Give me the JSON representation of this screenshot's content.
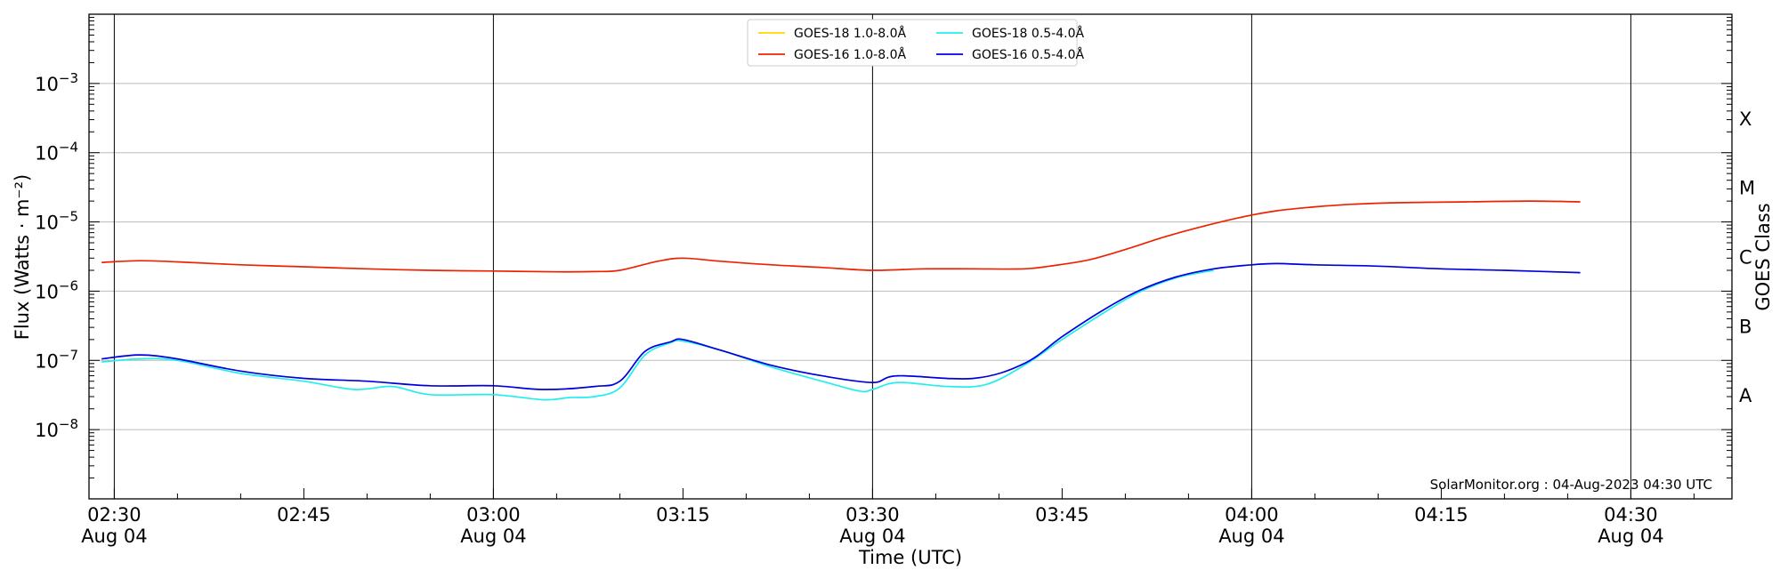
{
  "chart_data": {
    "type": "line",
    "xlabel": "Time (UTC)",
    "ylabel": "Flux (Watts · m⁻²)",
    "y2label": "GOES Class",
    "yscale": "log",
    "ylim": [
      1e-09,
      0.01
    ],
    "xlim": [
      "2023-08-04 02:28",
      "2023-08-04 04:38"
    ],
    "grid": "horizontal-major",
    "legend_position": "top-center",
    "credit": "SolarMonitor.org : 04-Aug-2023 04:30 UTC",
    "x_ticks": [
      {
        "time": "02:30",
        "date": "Aug 04",
        "minute": 150
      },
      {
        "time": "02:45",
        "date": "",
        "minute": 165
      },
      {
        "time": "03:00",
        "date": "Aug 04",
        "minute": 180
      },
      {
        "time": "03:15",
        "date": "",
        "minute": 195
      },
      {
        "time": "03:30",
        "date": "Aug 04",
        "minute": 210
      },
      {
        "time": "03:45",
        "date": "",
        "minute": 225
      },
      {
        "time": "04:00",
        "date": "Aug 04",
        "minute": 240
      },
      {
        "time": "04:15",
        "date": "",
        "minute": 255
      },
      {
        "time": "04:30",
        "date": "Aug 04",
        "minute": 270
      }
    ],
    "y_ticks": [
      {
        "base": "10",
        "exp": "−8",
        "value": 1e-08
      },
      {
        "base": "10",
        "exp": "−7",
        "value": 1e-07
      },
      {
        "base": "10",
        "exp": "−6",
        "value": 1e-06
      },
      {
        "base": "10",
        "exp": "−5",
        "value": 1e-05
      },
      {
        "base": "10",
        "exp": "−4",
        "value": 0.0001
      },
      {
        "base": "10",
        "exp": "−3",
        "value": 0.001
      }
    ],
    "goes_classes": [
      {
        "label": "A",
        "value": 3.16e-08
      },
      {
        "label": "B",
        "value": 3.16e-07
      },
      {
        "label": "C",
        "value": 3.16e-06
      },
      {
        "label": "M",
        "value": 3.16e-05
      },
      {
        "label": "X",
        "value": 0.000316
      }
    ],
    "series": [
      {
        "name": "GOES-18 1.0-8.0Å",
        "color": "#ffd700",
        "x": [],
        "y": []
      },
      {
        "name": "GOES-16 1.0-8.0Å",
        "color": "#ee2200",
        "x": [
          149,
          152,
          155,
          160,
          165,
          170,
          175,
          180,
          185,
          188,
          190,
          193,
          195,
          198,
          202,
          206,
          210,
          214,
          218,
          222,
          224,
          227,
          230,
          233,
          236,
          239,
          242,
          245,
          248,
          252,
          257,
          262,
          266
        ],
        "y": [
          2.6e-06,
          2.75e-06,
          2.65e-06,
          2.4e-06,
          2.25e-06,
          2.1e-06,
          2e-06,
          1.95e-06,
          1.9e-06,
          1.92e-06,
          2e-06,
          2.7e-06,
          3e-06,
          2.7e-06,
          2.4e-06,
          2.2e-06,
          2e-06,
          2.1e-06,
          2.1e-06,
          2.1e-06,
          2.3e-06,
          2.8e-06,
          4e-06,
          6e-06,
          8.5e-06,
          1.15e-05,
          1.45e-05,
          1.65e-05,
          1.8e-05,
          1.9e-05,
          1.95e-05,
          2e-05,
          1.95e-05
        ]
      },
      {
        "name": "GOES-18 0.5-4.0Å",
        "color": "#22eeee",
        "x": [
          149,
          152,
          155,
          160,
          165,
          169,
          172,
          175,
          180,
          184,
          186,
          188,
          190,
          192,
          194,
          195,
          198,
          202,
          206,
          209,
          210,
          212,
          216,
          219,
          222,
          225,
          228,
          231,
          234,
          237
        ],
        "y": [
          9.5e-08,
          1.05e-07,
          1e-07,
          6.5e-08,
          5e-08,
          3.8e-08,
          4.2e-08,
          3.2e-08,
          3.2e-08,
          2.7e-08,
          2.9e-08,
          3e-08,
          4e-08,
          1.2e-07,
          1.8e-07,
          1.9e-07,
          1.4e-07,
          8e-08,
          5e-08,
          3.6e-08,
          3.8e-08,
          4.8e-08,
          4.2e-08,
          4.5e-08,
          8.5e-08,
          2e-07,
          4.5e-07,
          9.5e-07,
          1.55e-06,
          2e-06
        ]
      },
      {
        "name": "GOES-16 0.5-4.0Å",
        "color": "#0000dd",
        "x": [
          149,
          152,
          155,
          160,
          165,
          170,
          175,
          180,
          184,
          188,
          190,
          192,
          194,
          195,
          198,
          202,
          206,
          210,
          212,
          218,
          222,
          225,
          228,
          231,
          234,
          237,
          240,
          242,
          245,
          250,
          255,
          260,
          266
        ],
        "y": [
          1.05e-07,
          1.2e-07,
          1.05e-07,
          7e-08,
          5.5e-08,
          5e-08,
          4.3e-08,
          4.3e-08,
          3.8e-08,
          4.2e-08,
          5e-08,
          1.35e-07,
          1.85e-07,
          2e-07,
          1.4e-07,
          8.5e-08,
          6e-08,
          4.8e-08,
          6e-08,
          5.5e-08,
          9e-08,
          2.2e-07,
          5e-07,
          1e-06,
          1.6e-06,
          2.1e-06,
          2.4e-06,
          2.5e-06,
          2.4e-06,
          2.3e-06,
          2.1e-06,
          2e-06,
          1.85e-06
        ]
      }
    ]
  }
}
